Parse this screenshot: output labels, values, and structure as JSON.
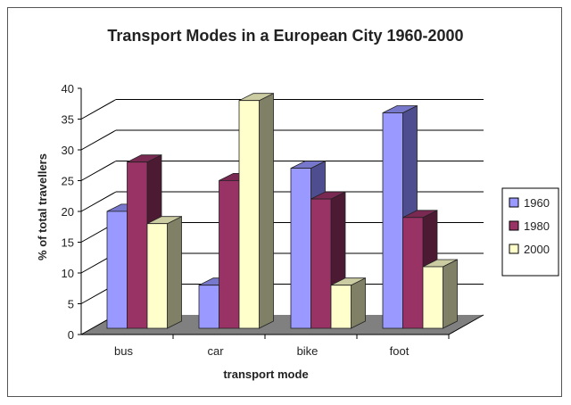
{
  "chart_data": {
    "type": "bar",
    "title": "Transport Modes in a European City 1960-2000",
    "xlabel": "transport mode",
    "ylabel": "% of total travellers",
    "ylim": [
      0,
      40
    ],
    "yticks": [
      0,
      5,
      10,
      15,
      20,
      25,
      30,
      35,
      40
    ],
    "categories": [
      "bus",
      "car",
      "bike",
      "foot"
    ],
    "series": [
      {
        "name": "1960",
        "values": [
          19,
          7,
          26,
          35
        ],
        "color": "#9999FF",
        "side": "#4D4D8F",
        "top": "#7777CC"
      },
      {
        "name": "1980",
        "values": [
          27,
          24,
          21,
          18
        ],
        "color": "#993366",
        "side": "#4D1A33",
        "top": "#7A2952"
      },
      {
        "name": "2000",
        "values": [
          17,
          37,
          7,
          10
        ],
        "color": "#FFFFCC",
        "side": "#808066",
        "top": "#CCCCA3"
      }
    ],
    "grid": true,
    "legend": "right",
    "style": "3d-clustered-column",
    "floor_color": "#808080"
  }
}
